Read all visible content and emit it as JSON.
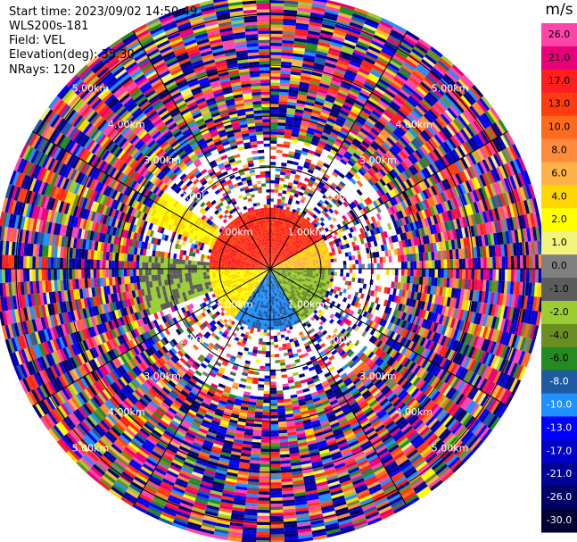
{
  "header": {
    "start_time": "Start time: 2023/09/02 14:50:49",
    "site": "WLS200s-181",
    "field": "Field: VEL",
    "elevation": "Elevation(deg): 35.30",
    "nrays": "NRays: 120"
  },
  "colorbar": {
    "unit": "m/s",
    "ticks": [
      "26.0",
      "21.0",
      "17.0",
      "13.0",
      "10.0",
      "8.0",
      "6.0",
      "4.0",
      "2.0",
      "1.0",
      "0.0",
      "-1.0",
      "-2.0",
      "-4.0",
      "-6.0",
      "-8.0",
      "-10.0",
      "-13.0",
      "-17.0",
      "-21.0",
      "-26.0",
      "-30.0"
    ],
    "colors": [
      "#ff44aa",
      "#e8007a",
      "#ff1e1e",
      "#ff3b10",
      "#ff6a1c",
      "#ff8c3c",
      "#ffb347",
      "#ffd700",
      "#ffff00",
      "#f4f47a",
      "#808080",
      "#5c5c5c",
      "#9acd32",
      "#6b8e23",
      "#228b22",
      "#1e5aa0",
      "#1e90ff",
      "#0000ff",
      "#0000c8",
      "#000096",
      "#000064",
      "#000033"
    ]
  },
  "chart_data": {
    "type": "heatmap",
    "plot_type": "PPI polar scan",
    "field": "VEL",
    "units": "m/s",
    "elevation_deg": 35.3,
    "n_rays": 120,
    "range_rings_km": [
      1.0,
      2.0,
      3.0,
      4.0,
      5.0
    ],
    "ring_labels": [
      "1.00km",
      "2.00km",
      "3.00km",
      "4.00km",
      "5.00km"
    ],
    "max_range_km": 5.4,
    "clean_region": {
      "max_range_km": 1.2,
      "sectors": [
        {
          "az_from": 270,
          "az_to": 60,
          "velocity": 13.0
        },
        {
          "az_from": 60,
          "az_to": 90,
          "velocity": 4.0
        },
        {
          "az_from": 90,
          "az_to": 150,
          "velocity": -4.0
        },
        {
          "az_from": 150,
          "az_to": 215,
          "velocity": -10.0
        },
        {
          "az_from": 215,
          "az_to": 270,
          "velocity": 2.0
        }
      ]
    },
    "clean_region_outer": {
      "max_range_km": 2.6,
      "sectors": [
        {
          "az_from": 290,
          "az_to": 305,
          "velocity": 2.0
        },
        {
          "az_from": 250,
          "az_to": 275,
          "velocity": -2.0
        }
      ]
    },
    "far_field": "noise (random velocities, -30 to 26 m/s)"
  }
}
